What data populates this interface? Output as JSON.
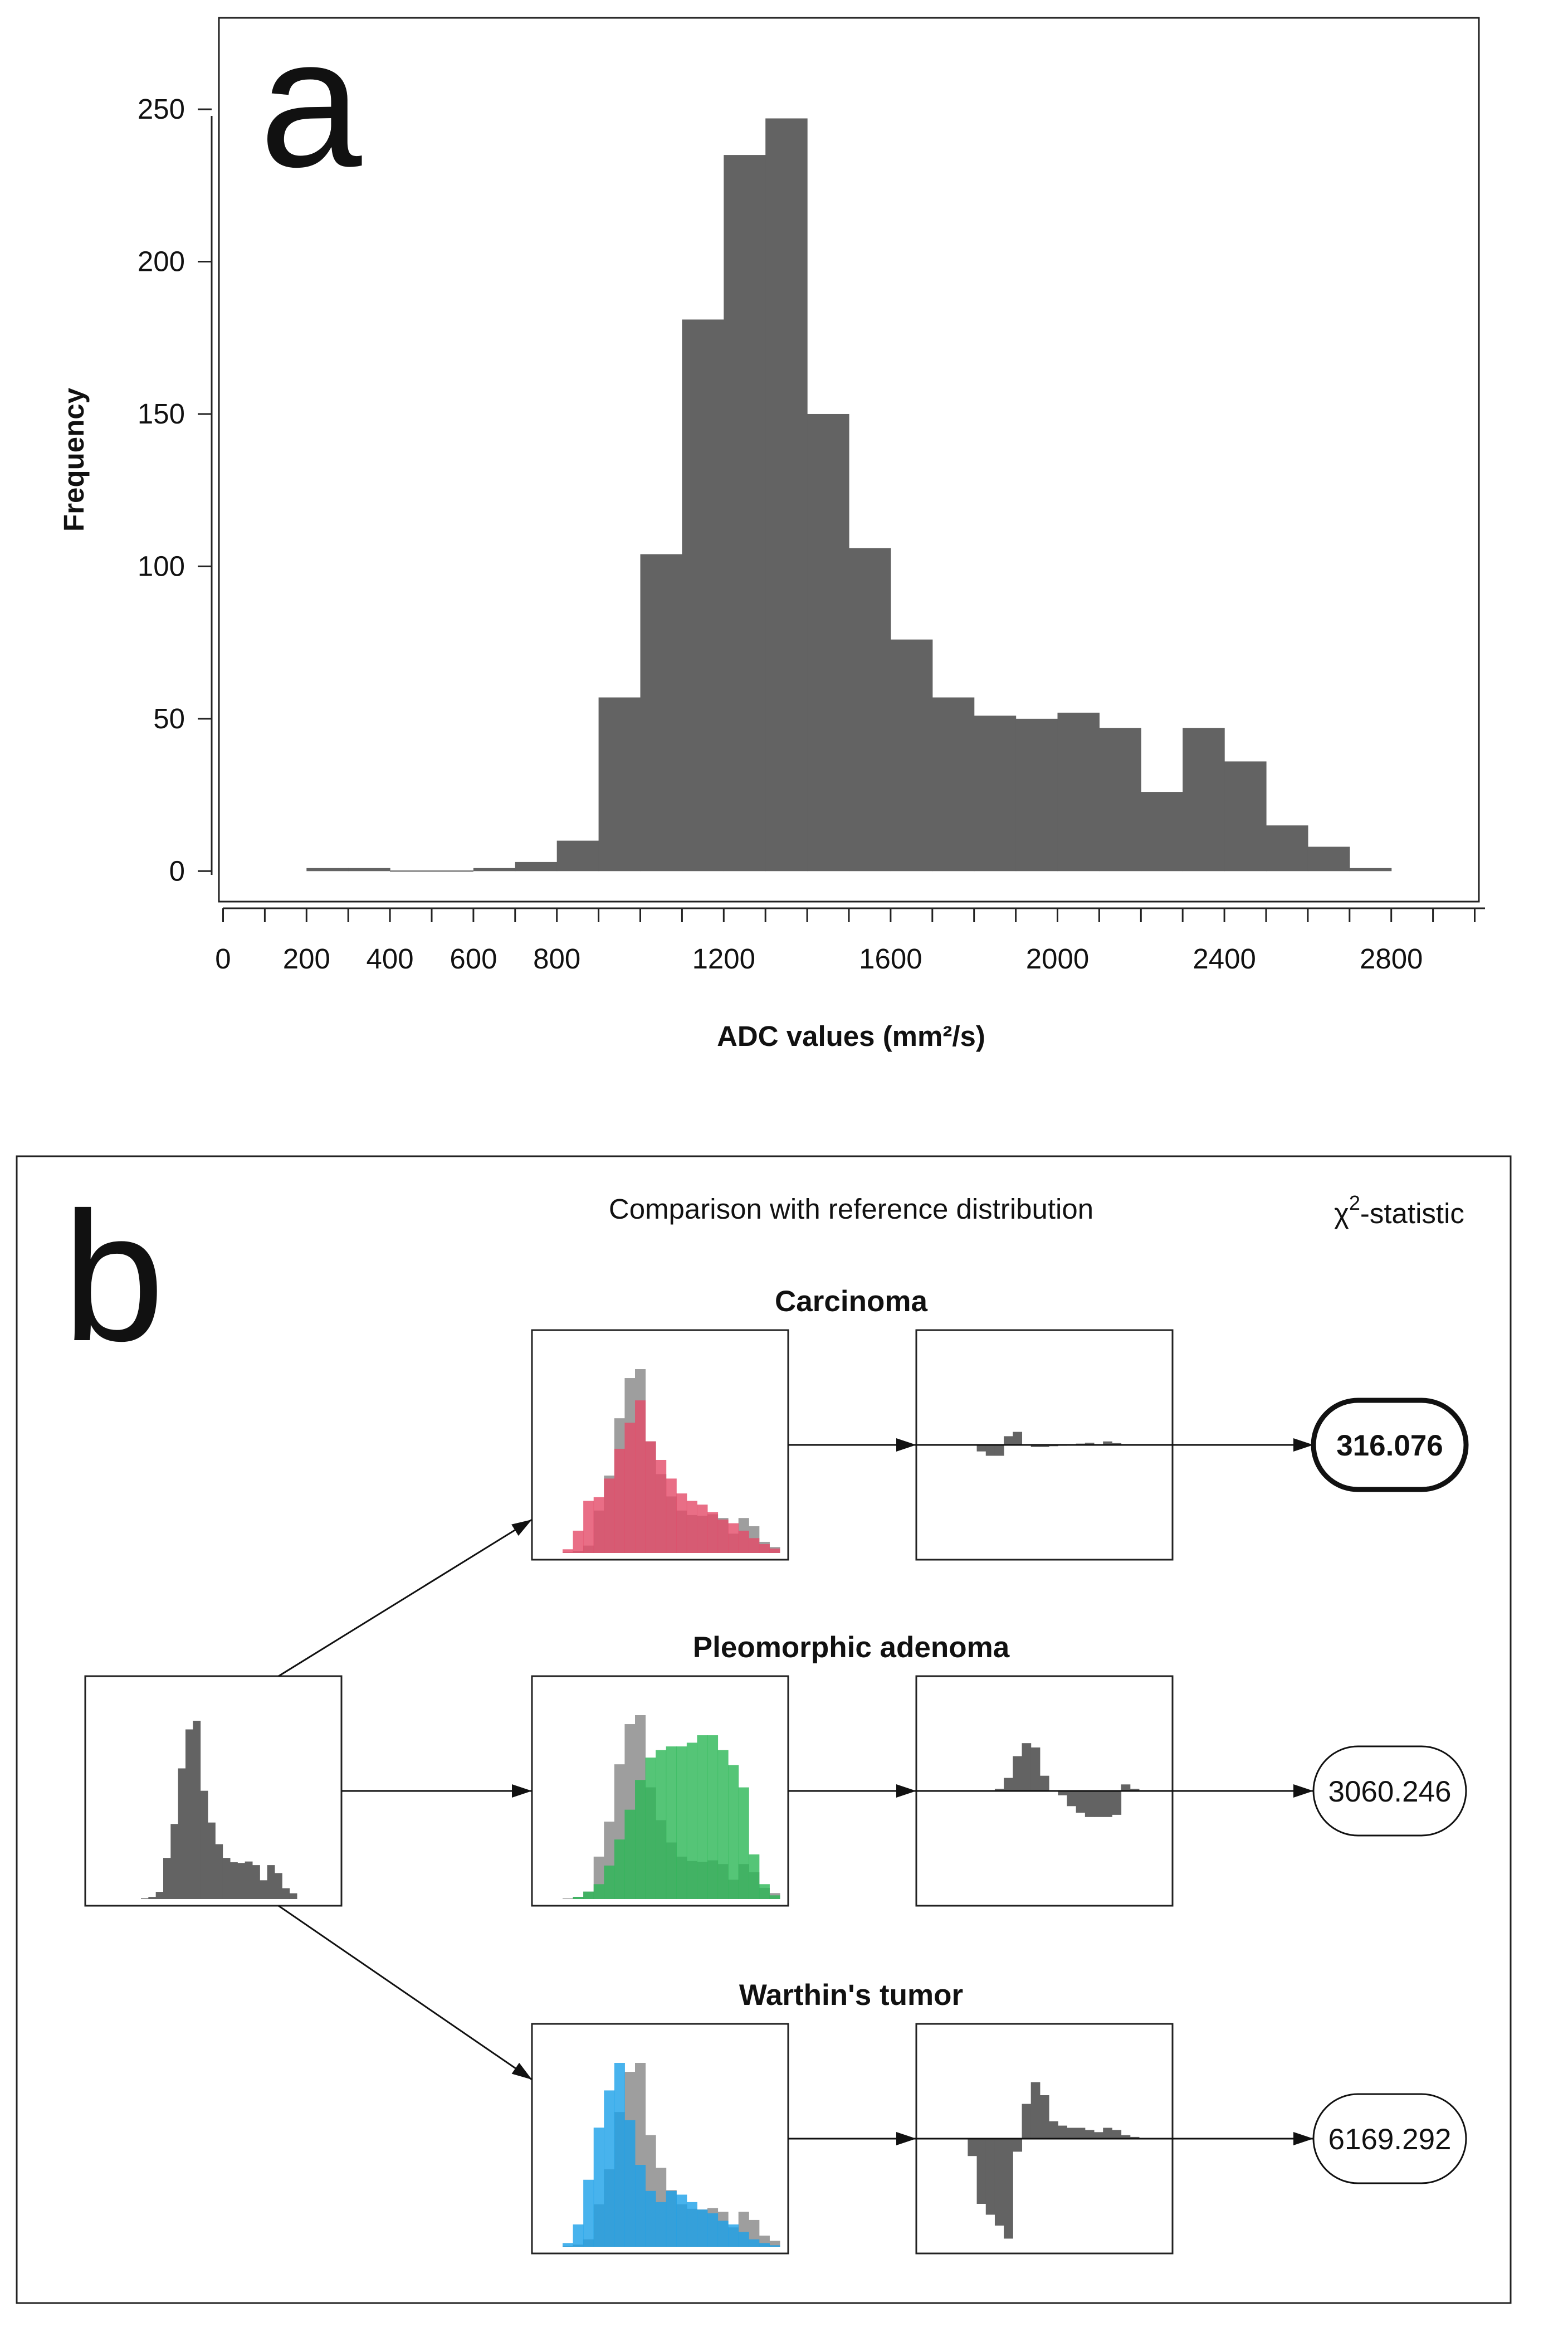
{
  "chart_data": [
    {
      "panel": "a",
      "type": "bar",
      "title": "",
      "xlabel": "ADC values (mm²/s)",
      "ylabel": "Frequency",
      "xlim": [
        -10,
        3010
      ],
      "ylim": [
        -10,
        280
      ],
      "x_ticks": [
        0,
        100,
        200,
        300,
        400,
        500,
        600,
        700,
        800,
        900,
        1000,
        1100,
        1200,
        1300,
        1400,
        1500,
        1600,
        1700,
        1800,
        1900,
        2000,
        2100,
        2200,
        2300,
        2400,
        2500,
        2600,
        2700,
        2800,
        2900,
        3000
      ],
      "x_tick_labels": [
        "0",
        "200",
        "400",
        "600",
        "800",
        "1200",
        "1600",
        "2000",
        "2400",
        "2800"
      ],
      "y_ticks": [
        0,
        50,
        100,
        150,
        200,
        250
      ],
      "y_tick_labels": [
        "0",
        "50",
        "100",
        "150",
        "200",
        "250"
      ],
      "bin_width": 100,
      "bin_starts": [
        200,
        300,
        400,
        500,
        600,
        700,
        800,
        900,
        1000,
        1100,
        1200,
        1300,
        1400,
        1500,
        1600,
        1700,
        1800,
        1900,
        2000,
        2100,
        2200,
        2300,
        2400,
        2500,
        2600,
        2700
      ],
      "values": [
        1,
        1,
        0,
        0,
        1,
        3,
        10,
        57,
        104,
        181,
        235,
        247,
        150,
        106,
        76,
        57,
        51,
        50,
        52,
        47,
        26,
        47,
        36,
        15,
        8,
        1
      ],
      "color": "#636363"
    },
    {
      "panel": "b",
      "type": "diagram",
      "title": "Comparison with reference distribution",
      "statistic_label": "χ²-statistic",
      "statistic_label_base": "χ",
      "statistic_label_sup": "2",
      "statistic_label_rest": "-statistic",
      "input_histogram": {
        "values": [
          1,
          3,
          10,
          57,
          104,
          181,
          235,
          247,
          150,
          106,
          76,
          57,
          51,
          50,
          52,
          47,
          26,
          47,
          36,
          15,
          8
        ],
        "color": "#636363"
      },
      "groups": [
        {
          "name": "Carcinoma",
          "chi_square": "316.076",
          "best_match": true,
          "reference_color": "#e34a68",
          "sample_values": [
            1,
            3,
            10,
            57,
            104,
            181,
            235,
            247,
            150,
            106,
            76,
            57,
            51,
            50,
            52,
            47,
            26,
            47,
            36,
            15,
            8
          ],
          "reference_values": [
            5,
            30,
            70,
            75,
            100,
            140,
            175,
            205,
            150,
            125,
            100,
            80,
            70,
            65,
            55,
            45,
            40,
            30,
            20,
            12,
            6
          ],
          "difference_values": [
            0,
            0,
            0,
            -15,
            -25,
            -25,
            20,
            30,
            0,
            -5,
            -5,
            -3,
            -2,
            0,
            3,
            5,
            0,
            8,
            4,
            0,
            0
          ]
        },
        {
          "name": "Pleomorphic adenoma",
          "chi_square": "3060.246",
          "best_match": false,
          "reference_color": "#2ab655",
          "sample_values": [
            1,
            3,
            10,
            57,
            104,
            181,
            235,
            247,
            150,
            106,
            76,
            57,
            51,
            50,
            52,
            47,
            26,
            47,
            36,
            15,
            8
          ],
          "reference_values": [
            0,
            3,
            10,
            20,
            45,
            80,
            120,
            160,
            190,
            200,
            205,
            205,
            210,
            220,
            220,
            200,
            180,
            150,
            60,
            20,
            5
          ],
          "difference_values": [
            0,
            0,
            0,
            0,
            0,
            5,
            30,
            80,
            110,
            100,
            35,
            0,
            -10,
            -35,
            -50,
            -60,
            -60,
            -60,
            -55,
            15,
            5
          ]
        },
        {
          "name": "Warthin's tumor",
          "chi_square": "6169.292",
          "best_match": false,
          "reference_color": "#1aa0e8",
          "sample_values": [
            1,
            3,
            10,
            57,
            104,
            181,
            235,
            247,
            150,
            106,
            76,
            57,
            51,
            50,
            52,
            47,
            26,
            47,
            36,
            15,
            8
          ],
          "reference_values": [
            5,
            30,
            90,
            160,
            210,
            247,
            170,
            110,
            75,
            60,
            75,
            70,
            60,
            50,
            45,
            35,
            30,
            20,
            10,
            5,
            2
          ],
          "difference_values": [
            0,
            0,
            -40,
            -150,
            -175,
            -200,
            -230,
            -30,
            80,
            130,
            100,
            40,
            30,
            25,
            25,
            20,
            15,
            25,
            20,
            8,
            4
          ]
        }
      ]
    }
  ],
  "panel_labels": {
    "a": "a",
    "b": "b"
  }
}
